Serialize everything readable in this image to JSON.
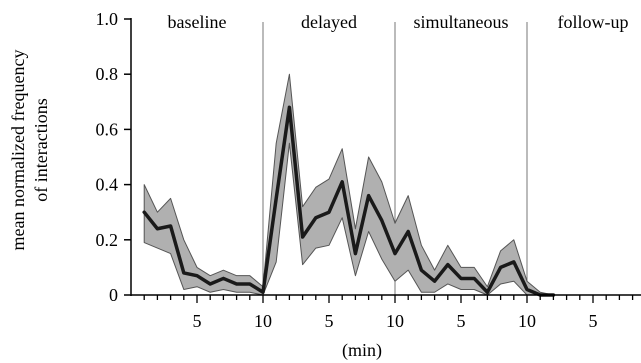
{
  "chart_data": {
    "type": "line",
    "title": "",
    "xlabel": "(min)",
    "ylabel_lines": [
      "mean normalized frequency",
      "of interactions"
    ],
    "ylim": [
      0,
      1.0
    ],
    "yticks": [
      {
        "value": 0,
        "label": "0"
      },
      {
        "value": 0.2,
        "label": "0.2"
      },
      {
        "value": 0.4,
        "label": "0.4"
      },
      {
        "value": 0.6,
        "label": "0.6"
      },
      {
        "value": 0.8,
        "label": "0.8"
      },
      {
        "value": 1.0,
        "label": "1.0"
      }
    ],
    "xlim": [
      0,
      45
    ],
    "xtick_labels": [
      {
        "x": 5,
        "label": "5"
      },
      {
        "x": 10,
        "label": "10"
      },
      {
        "x": 15,
        "label": "5"
      },
      {
        "x": 20,
        "label": "10"
      },
      {
        "x": 25,
        "label": "5"
      },
      {
        "x": 30,
        "label": "10"
      },
      {
        "x": 35,
        "label": "5"
      }
    ],
    "phases": [
      {
        "label": "baseline",
        "start": 0,
        "end": 10
      },
      {
        "label": "delayed",
        "start": 10,
        "end": 20
      },
      {
        "label": "simultaneous",
        "start": 20,
        "end": 30
      },
      {
        "label": "follow-up",
        "start": 30,
        "end": 40
      }
    ],
    "phase_dividers": [
      10,
      20,
      30
    ],
    "series": [
      {
        "x": [
          1,
          2,
          3,
          4,
          5,
          6,
          7,
          8,
          9,
          10,
          11,
          12,
          13,
          14,
          15,
          16,
          17,
          18,
          19,
          20,
          21,
          22,
          23,
          24,
          25,
          26,
          27,
          28,
          29,
          30,
          31,
          32
        ],
        "mean": [
          0.3,
          0.24,
          0.25,
          0.08,
          0.07,
          0.04,
          0.06,
          0.04,
          0.04,
          0.01,
          0.35,
          0.68,
          0.21,
          0.28,
          0.3,
          0.41,
          0.15,
          0.36,
          0.27,
          0.15,
          0.23,
          0.09,
          0.05,
          0.11,
          0.06,
          0.06,
          0.01,
          0.1,
          0.12,
          0.02,
          0.0,
          0.0
        ],
        "upper": [
          0.4,
          0.3,
          0.35,
          0.2,
          0.1,
          0.07,
          0.09,
          0.07,
          0.07,
          0.03,
          0.55,
          0.8,
          0.32,
          0.39,
          0.42,
          0.53,
          0.24,
          0.5,
          0.41,
          0.26,
          0.36,
          0.18,
          0.09,
          0.18,
          0.1,
          0.1,
          0.03,
          0.16,
          0.2,
          0.05,
          0.01,
          0.0
        ],
        "lower": [
          0.19,
          0.17,
          0.15,
          0.02,
          0.03,
          0.01,
          0.02,
          0.01,
          0.01,
          0.0,
          0.12,
          0.55,
          0.11,
          0.17,
          0.18,
          0.28,
          0.07,
          0.23,
          0.13,
          0.05,
          0.09,
          0.01,
          0.01,
          0.04,
          0.02,
          0.02,
          0.0,
          0.04,
          0.05,
          0.0,
          0.0,
          0.0
        ]
      }
    ],
    "colors": {
      "line": "#1a1a1a",
      "band": "#b0b0b0",
      "band_edge": "#555555",
      "axis": "#000000",
      "divider": "#777777"
    }
  }
}
